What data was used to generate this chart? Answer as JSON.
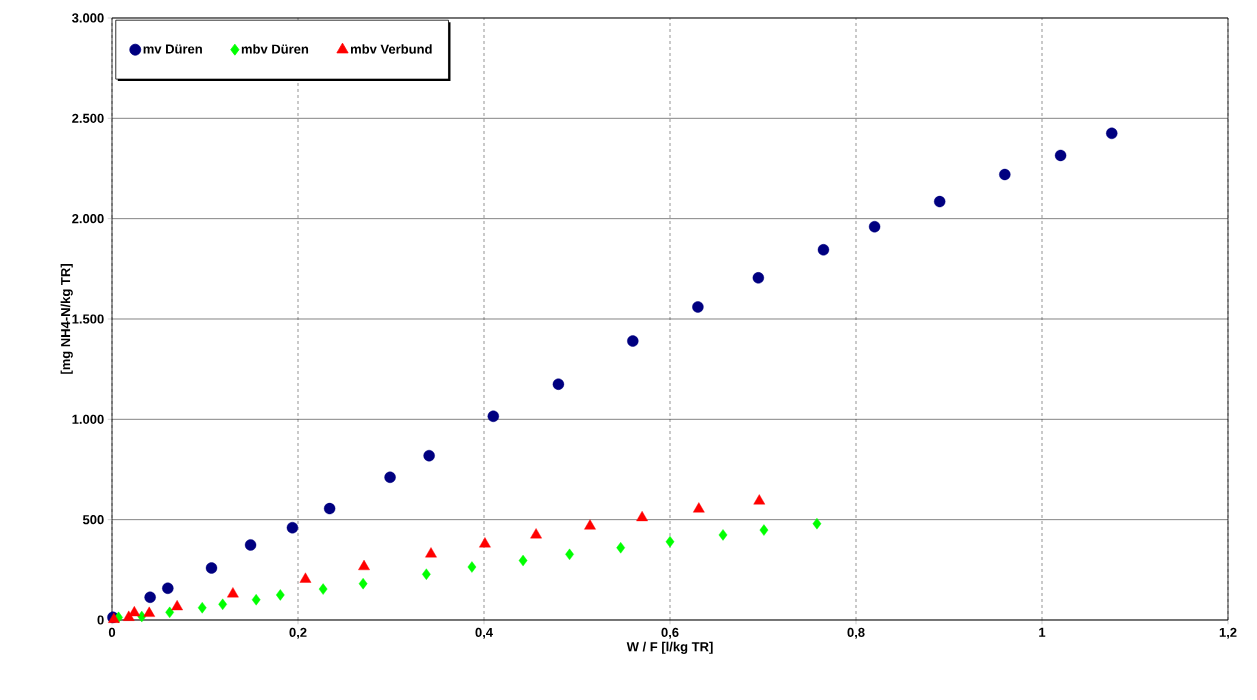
{
  "chart_data": {
    "type": "scatter",
    "xlabel": "W / F [l/kg TR]",
    "ylabel": "[mg NH4-N/kg TR]",
    "xlim": [
      0,
      1.2
    ],
    "ylim": [
      0,
      3000
    ],
    "xticks": [
      0,
      {
        "value": 0.2,
        "label": "0,2"
      },
      {
        "value": 0.4,
        "label": "0,4"
      },
      {
        "value": 0.6,
        "label": "0,6"
      },
      {
        "value": 0.8,
        "label": "0,8"
      },
      1,
      {
        "value": 1.2,
        "label": "1,2"
      }
    ],
    "yticks": [
      0,
      500,
      {
        "value": 1000,
        "label": "1.000"
      },
      {
        "value": 1500,
        "label": "1.500"
      },
      {
        "value": 2000,
        "label": "2.000"
      },
      {
        "value": 2500,
        "label": "2.500"
      },
      {
        "value": 3000,
        "label": "3.000"
      }
    ],
    "grid": true,
    "legend": "top left",
    "series": [
      {
        "name": "mv Düren",
        "color": "#000080",
        "marker": "circle",
        "x": [
          0.001,
          0.041,
          0.06,
          0.107,
          0.149,
          0.194,
          0.234,
          0.299,
          0.341,
          0.41,
          0.48,
          0.56,
          0.63,
          0.695,
          0.765,
          0.82,
          0.89,
          0.96,
          1.02,
          1.075
        ],
        "values": [
          13,
          113,
          158,
          259,
          374,
          460,
          555,
          711,
          819,
          1015,
          1175,
          1390,
          1560,
          1705,
          1845,
          1960,
          2085,
          2220,
          2315,
          2425
        ]
      },
      {
        "name": "mbv Düren",
        "color": "#00ff00",
        "marker": "diamond",
        "x": [
          0.007,
          0.032,
          0.062,
          0.097,
          0.119,
          0.155,
          0.181,
          0.227,
          0.27,
          0.338,
          0.387,
          0.442,
          0.492,
          0.547,
          0.6,
          0.657,
          0.701,
          0.758
        ],
        "values": [
          13,
          17,
          38,
          61,
          78,
          101,
          125,
          154,
          181,
          228,
          264,
          296,
          327,
          360,
          390,
          424,
          448,
          480
        ]
      },
      {
        "name": "mbv Verbund",
        "color": "#ff0000",
        "marker": "triangle",
        "x": [
          0.002,
          0.018,
          0.024,
          0.04,
          0.07,
          0.13,
          0.208,
          0.271,
          0.343,
          0.401,
          0.456,
          0.514,
          0.57,
          0.631,
          0.696
        ],
        "values": [
          3,
          13,
          36,
          33,
          66,
          130,
          203,
          266,
          329,
          379,
          424,
          468,
          510,
          553,
          593
        ]
      }
    ]
  }
}
